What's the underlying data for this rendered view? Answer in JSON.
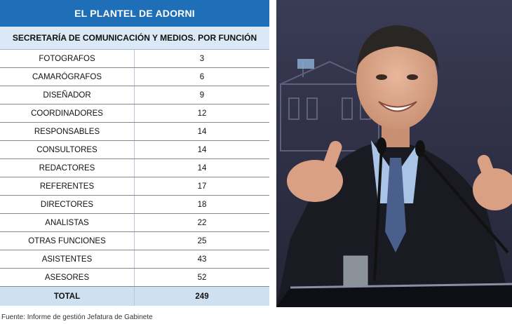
{
  "table": {
    "title": "EL PLANTEL DE ADORNI",
    "subtitle": "SECRETARÍA DE COMUNICACIÓN Y MEDIOS. POR FUNCIÓN",
    "rows": [
      {
        "label": "FOTOGRAFOS",
        "value": "3"
      },
      {
        "label": "CAMARÓGRAFOS",
        "value": "6"
      },
      {
        "label": "DISEÑADOR",
        "value": "9"
      },
      {
        "label": "COORDINADORES",
        "value": "12"
      },
      {
        "label": "RESPONSABLES",
        "value": "14"
      },
      {
        "label": "CONSULTORES",
        "value": "14"
      },
      {
        "label": "REDACTORES",
        "value": "14"
      },
      {
        "label": "REFERENTES",
        "value": "17"
      },
      {
        "label": "DIRECTORES",
        "value": "18"
      },
      {
        "label": "ANALISTAS",
        "value": "22"
      },
      {
        "label": "OTRAS FUNCIONES",
        "value": "25"
      },
      {
        "label": "ASISTENTES",
        "value": "43"
      },
      {
        "label": "ASESORES",
        "value": "52"
      }
    ],
    "total": {
      "label": "TOTAL",
      "value": "249"
    }
  },
  "source": "Fuente: Informe de gestión Jefatura de Gabinete",
  "colors": {
    "header": "#1f6fb8",
    "subheader": "#dbe9f6",
    "total_row": "#cfe0f1"
  }
}
